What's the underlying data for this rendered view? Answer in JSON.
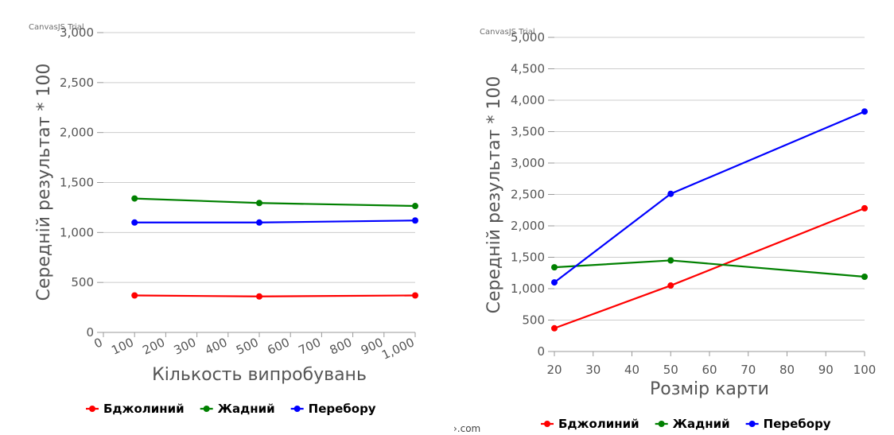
{
  "watermark": "CanvasJS Trial",
  "footer": "›.com",
  "colors": {
    "grid": "#cccccc",
    "tick": "#555555"
  },
  "chart_data": [
    {
      "type": "line",
      "xlabel": "Кількость випробувань",
      "ylabel": "Середній результат * 100",
      "xlim": [
        0,
        1000
      ],
      "ylim": [
        0,
        3000
      ],
      "x_ticks": [
        "0",
        "100",
        "200",
        "300",
        "400",
        "500",
        "600",
        "700",
        "800",
        "900",
        "1,000"
      ],
      "y_ticks": [
        "0",
        "500",
        "1,000",
        "1,500",
        "2,000",
        "2,500",
        "3,000"
      ],
      "series": [
        {
          "name": "Бджолиний",
          "color": "#ff0000",
          "x": [
            100,
            500,
            1000
          ],
          "values": [
            370,
            360,
            370
          ]
        },
        {
          "name": "Жадний",
          "color": "#008000",
          "x": [
            100,
            500,
            1000
          ],
          "values": [
            1340,
            1295,
            1265
          ]
        },
        {
          "name": "Перебору",
          "color": "#0000ff",
          "x": [
            100,
            500,
            1000
          ],
          "values": [
            1100,
            1100,
            1120
          ]
        }
      ]
    },
    {
      "type": "line",
      "xlabel": "Розмір карти",
      "ylabel": "Середній результат * 100",
      "xlim": [
        20,
        100
      ],
      "ylim": [
        0,
        5000
      ],
      "x_ticks": [
        "20",
        "30",
        "40",
        "50",
        "60",
        "70",
        "80",
        "90",
        "100"
      ],
      "y_ticks": [
        "0",
        "500",
        "1,000",
        "1,500",
        "2,000",
        "2,500",
        "3,000",
        "3,500",
        "4,000",
        "4,500",
        "5,000"
      ],
      "series": [
        {
          "name": "Бджолиний",
          "color": "#ff0000",
          "x": [
            20,
            50,
            100
          ],
          "values": [
            370,
            1050,
            2280
          ]
        },
        {
          "name": "Жадний",
          "color": "#008000",
          "x": [
            20,
            50,
            100
          ],
          "values": [
            1340,
            1450,
            1190
          ]
        },
        {
          "name": "Перебору",
          "color": "#0000ff",
          "x": [
            20,
            50,
            100
          ],
          "values": [
            1100,
            2510,
            3820
          ]
        }
      ]
    }
  ]
}
